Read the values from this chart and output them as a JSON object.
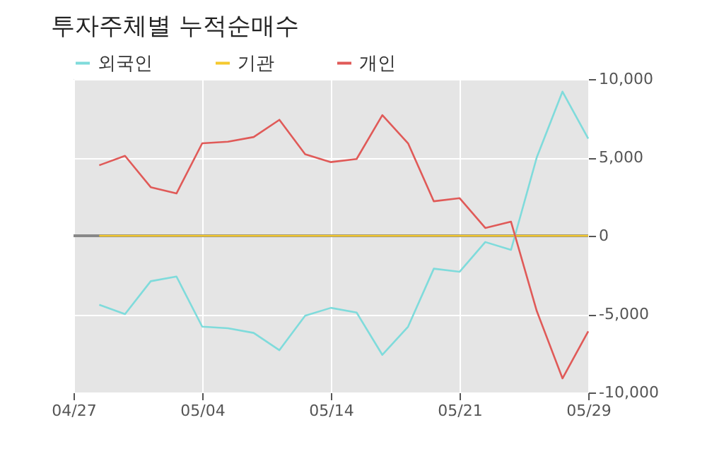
{
  "chart_data": {
    "type": "line",
    "title": "투자주체별 누적순매수",
    "categories": [
      "04/27",
      null,
      null,
      null,
      null,
      "05/04",
      null,
      null,
      null,
      null,
      "05/14",
      null,
      null,
      null,
      null,
      "05/21",
      null,
      null,
      null,
      null,
      "05/29"
    ],
    "series": [
      {
        "name": "외국인",
        "color": "#7fdbdb",
        "values": [
          null,
          -4400,
          -5000,
          -2900,
          -2600,
          -5800,
          -5900,
          -6200,
          -7300,
          -5100,
          -4600,
          -4900,
          -7600,
          -5800,
          -2100,
          -2300,
          -400,
          -900,
          5000,
          9200,
          6200
        ]
      },
      {
        "name": "기관",
        "color": "#f5c92e",
        "values": [
          null,
          0,
          0,
          0,
          0,
          0,
          0,
          0,
          0,
          0,
          0,
          0,
          0,
          0,
          0,
          0,
          0,
          0,
          0,
          0,
          0
        ]
      },
      {
        "name": "개인",
        "color": "#e05a58",
        "values": [
          null,
          4500,
          5100,
          3100,
          2700,
          5900,
          6000,
          6300,
          7400,
          5200,
          4700,
          4900,
          7700,
          5900,
          2200,
          2400,
          500,
          900,
          -4800,
          -9100,
          -6100
        ]
      }
    ],
    "ylim": [
      -10000,
      10000
    ],
    "yticks": [
      {
        "value": -10000,
        "label": "-10,000"
      },
      {
        "value": -5000,
        "label": "-5,000"
      },
      0,
      {
        "value": 5000,
        "label": "5,000"
      },
      {
        "value": 10000,
        "label": "10,000"
      }
    ],
    "ref_lines": [
      {
        "axis": "y",
        "value": 0,
        "color": "#888888"
      }
    ],
    "grid": true,
    "legend": "top left"
  }
}
